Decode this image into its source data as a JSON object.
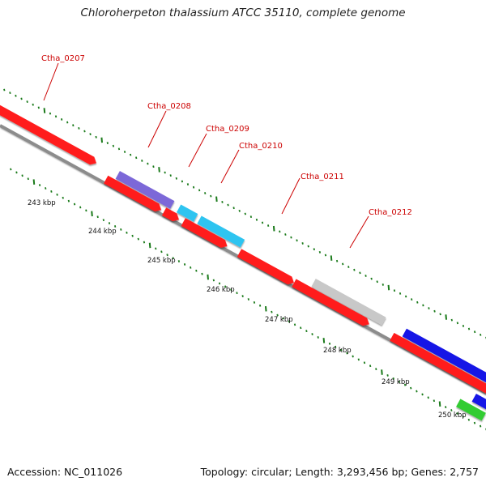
{
  "title": "Chloroherpeton thalassium ATCC 35110, complete genome",
  "footer": {
    "accession": "Accession: NC_011026",
    "summary": "Topology: circular; Length: 3,293,456 bp; Genes: 2,757"
  },
  "ticks": {
    "labels": [
      "243 kbp",
      "244 kbp",
      "245 kbp",
      "246 kbp",
      "247 kbp",
      "248 kbp",
      "249 kbp",
      "250 kbp"
    ],
    "color": "#1a7a1a"
  },
  "gene_labels": [
    "Ctha_0207",
    "Ctha_0208",
    "Ctha_0209",
    "Ctha_0210",
    "Ctha_0211",
    "Ctha_0212"
  ],
  "colors": {
    "backbone": "#8c8c8c",
    "cds_red": "#ff1a1a",
    "purple": "#7b68d8",
    "cyan": "#2ec4f0",
    "gray": "#c8c8c8",
    "blue": "#1414e6",
    "green": "#33cc33",
    "label_red": "#cc0000"
  }
}
